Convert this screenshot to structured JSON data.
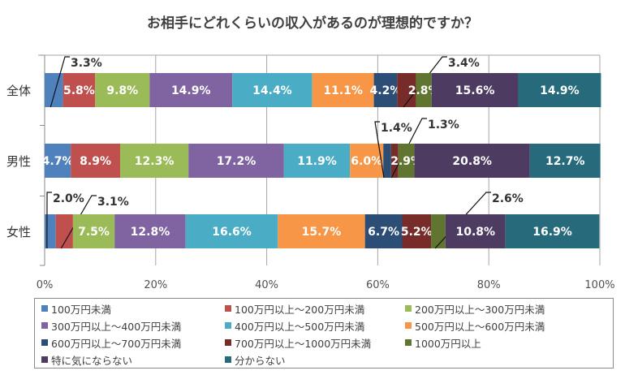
{
  "chart_data": {
    "type": "bar",
    "orientation": "horizontal",
    "stacked": "percent",
    "title": "お相手にどれくらいの収入があるのが理想的ですか？",
    "xlabel": "",
    "ylabel": "",
    "xlim": [
      0,
      100
    ],
    "x_ticks": [
      "0%",
      "20%",
      "40%",
      "60%",
      "80%",
      "100%"
    ],
    "grid": true,
    "legend_position": "bottom",
    "categories": [
      "全体",
      "男性",
      "女性"
    ],
    "series": [
      {
        "name": "100万円未満",
        "color": "#4f81bd",
        "values": [
          3.3,
          4.7,
          2.0
        ]
      },
      {
        "name": "100万円以上～200万円未満",
        "color": "#c0504d",
        "values": [
          5.8,
          8.9,
          3.1
        ]
      },
      {
        "name": "200万円以上～300万円未満",
        "color": "#9bbb59",
        "values": [
          9.8,
          12.3,
          7.5
        ]
      },
      {
        "name": "300万円以上～400万円未満",
        "color": "#8064a2",
        "values": [
          14.9,
          17.2,
          12.8
        ]
      },
      {
        "name": "400万円以上～500万円未満",
        "color": "#4bacc6",
        "values": [
          14.4,
          11.9,
          16.6
        ]
      },
      {
        "name": "500万円以上～600万円未満",
        "color": "#f79646",
        "values": [
          11.1,
          6.0,
          15.7
        ]
      },
      {
        "name": "600万円以上～700万円未満",
        "color": "#2c4d75",
        "values": [
          4.2,
          1.4,
          6.7
        ]
      },
      {
        "name": "700万円以上～1000万円未満",
        "color": "#772c2a",
        "values": [
          3.4,
          1.3,
          5.2
        ]
      },
      {
        "name": "1000万円以上",
        "color": "#5f7530",
        "values": [
          2.8,
          2.9,
          2.6
        ]
      },
      {
        "name": "特に気にならない",
        "color": "#4d3b62",
        "values": [
          15.6,
          20.8,
          10.8
        ]
      },
      {
        "name": "分からない",
        "color": "#276a7c",
        "values": [
          14.9,
          12.7,
          16.9
        ]
      }
    ],
    "labels": [
      [
        "3.3%",
        "5.8%",
        "9.8%",
        "14.9%",
        "14.4%",
        "11.1%",
        "4.2%",
        "3.4%",
        "2.8%",
        "15.6%",
        "14.9%"
      ],
      [
        "4.7%",
        "8.9%",
        "12.3%",
        "17.2%",
        "11.9%",
        "6.0%",
        "1.4%",
        "1.3%",
        "2.9%",
        "20.8%",
        "12.7%"
      ],
      [
        "2.0%",
        "3.1%",
        "7.5%",
        "12.8%",
        "16.6%",
        "15.7%",
        "6.7%",
        "5.2%",
        "2.6%",
        "10.8%",
        "16.9%"
      ]
    ],
    "callouts": [
      {
        "row": 0,
        "series": 0,
        "side": "above"
      },
      {
        "row": 0,
        "series": 7,
        "side": "above"
      },
      {
        "row": 1,
        "series": 6,
        "side": "above"
      },
      {
        "row": 1,
        "series": 7,
        "side": "above"
      },
      {
        "row": 2,
        "series": 0,
        "side": "above"
      },
      {
        "row": 2,
        "series": 1,
        "side": "above"
      },
      {
        "row": 2,
        "series": 8,
        "side": "above"
      }
    ]
  }
}
